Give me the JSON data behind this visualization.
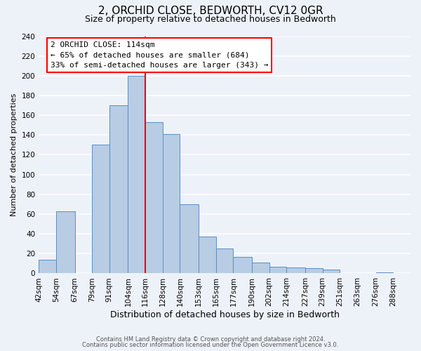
{
  "title": "2, ORCHID CLOSE, BEDWORTH, CV12 0GR",
  "subtitle": "Size of property relative to detached houses in Bedworth",
  "xlabel": "Distribution of detached houses by size in Bedworth",
  "ylabel": "Number of detached properties",
  "bin_labels": [
    "42sqm",
    "54sqm",
    "67sqm",
    "79sqm",
    "91sqm",
    "104sqm",
    "116sqm",
    "128sqm",
    "140sqm",
    "153sqm",
    "165sqm",
    "177sqm",
    "190sqm",
    "202sqm",
    "214sqm",
    "227sqm",
    "239sqm",
    "251sqm",
    "263sqm",
    "276sqm",
    "288sqm"
  ],
  "bin_edges": [
    42,
    54,
    67,
    79,
    91,
    104,
    116,
    128,
    140,
    153,
    165,
    177,
    190,
    202,
    214,
    227,
    239,
    251,
    263,
    276,
    288,
    300
  ],
  "bar_heights": [
    14,
    63,
    0,
    130,
    170,
    200,
    153,
    141,
    70,
    37,
    25,
    17,
    11,
    7,
    6,
    5,
    4,
    0,
    0,
    1,
    0
  ],
  "bar_color": "#b8cce4",
  "bar_edge_color": "#5b8ec4",
  "vline_x": 116,
  "vline_color": "red",
  "annotation_title": "2 ORCHID CLOSE: 114sqm",
  "annotation_line1": "← 65% of detached houses are smaller (684)",
  "annotation_line2": "33% of semi-detached houses are larger (343) →",
  "annotation_box_facecolor": "white",
  "annotation_box_edgecolor": "red",
  "ylim": [
    0,
    240
  ],
  "yticks": [
    0,
    20,
    40,
    60,
    80,
    100,
    120,
    140,
    160,
    180,
    200,
    220,
    240
  ],
  "footnote1": "Contains HM Land Registry data © Crown copyright and database right 2024.",
  "footnote2": "Contains public sector information licensed under the Open Government Licence v3.0.",
  "background_color": "#edf2f9",
  "grid_color": "#ffffff",
  "title_fontsize": 11,
  "subtitle_fontsize": 9,
  "ylabel_fontsize": 8,
  "xlabel_fontsize": 9,
  "tick_fontsize": 7.5,
  "annot_fontsize": 8,
  "footnote_fontsize": 6
}
